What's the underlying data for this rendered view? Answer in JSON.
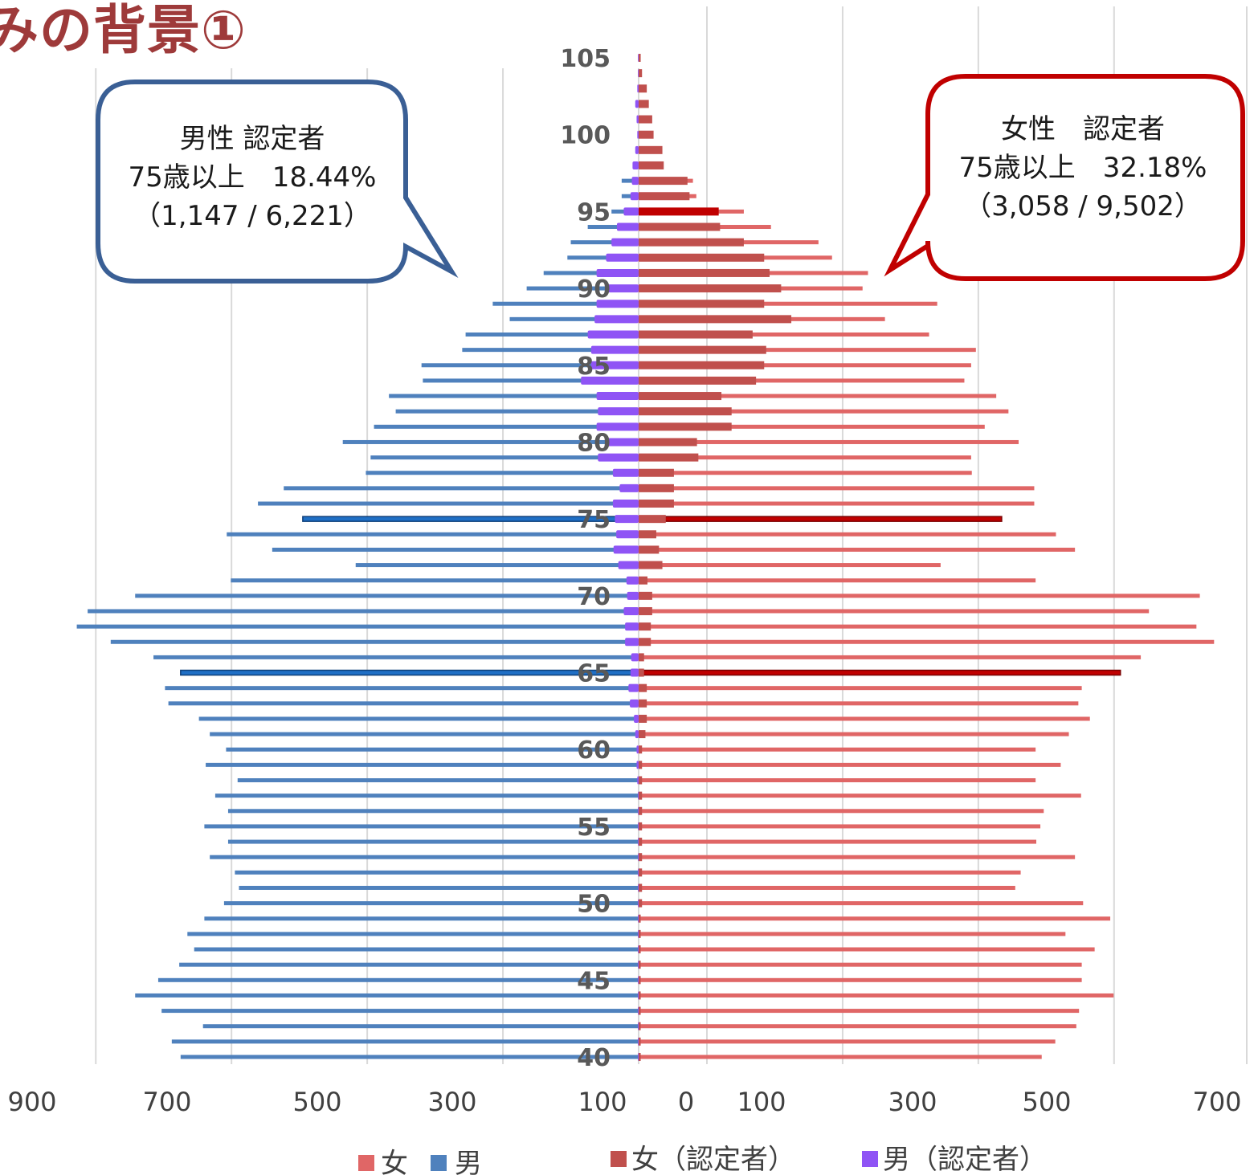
{
  "page": {
    "title": "みの背景①"
  },
  "colors": {
    "female": "#e06666",
    "male": "#4f81bd",
    "female_certified": "#c0504d",
    "male_certified": "#8f54f5",
    "grid": "#d9d9d9",
    "callout_male_border": "#3a5f95",
    "callout_female_border": "#c00000",
    "highlight_male": "#1f6fc5",
    "highlight_female": "#c00000"
  },
  "callouts": {
    "male": {
      "line1": "男性 認定者",
      "line2": "75歳以上　18.44%",
      "line3": "（1,147 /  6,221）"
    },
    "female": {
      "line1": "女性　認定者",
      "line2": "75歳以上　32.18%",
      "line3": "（3,058  /  9,502）"
    }
  },
  "legend": [
    {
      "label": "女",
      "color": "#e06666"
    },
    {
      "label": "男",
      "color": "#4f81bd"
    },
    {
      "label": "女（認定者）",
      "color": "#c0504d"
    },
    {
      "label": "男（認定者）",
      "color": "#8f54f5"
    }
  ],
  "chart_data": {
    "type": "bar",
    "orientation": "horizontal",
    "ages": [
      105,
      104,
      103,
      102,
      101,
      100,
      99,
      98,
      97,
      96,
      95,
      94,
      93,
      92,
      91,
      90,
      89,
      88,
      87,
      86,
      85,
      84,
      83,
      82,
      81,
      80,
      79,
      78,
      77,
      76,
      75,
      74,
      73,
      72,
      71,
      70,
      69,
      68,
      67,
      66,
      65,
      64,
      63,
      62,
      61,
      60,
      59,
      58,
      57,
      56,
      55,
      54,
      53,
      52,
      51,
      50,
      49,
      48,
      47,
      46,
      45,
      44,
      43,
      42,
      41,
      40
    ],
    "age_tick_labels": [
      "105",
      "100",
      "95",
      "90",
      "85",
      "80",
      "75",
      "70",
      "65",
      "60",
      "55",
      "50",
      "45",
      "40"
    ],
    "age_tick_values": [
      105,
      100,
      95,
      90,
      85,
      80,
      75,
      70,
      65,
      60,
      55,
      50,
      45,
      40
    ],
    "x_tick_labels_male": [
      "900",
      "700",
      "500",
      "300",
      "100"
    ],
    "x_tick_labels_female": [
      "0",
      "100",
      "300",
      "500",
      "700"
    ],
    "male_axis_range": [
      0,
      900
    ],
    "female_axis_range": [
      0,
      900
    ],
    "grid": true,
    "legend_position": "bottom",
    "highlight_ages": [
      95,
      75,
      65
    ],
    "series": [
      {
        "name": "男",
        "side": "left",
        "values": [
          0,
          0,
          0,
          0,
          0,
          0,
          0,
          0,
          25,
          25,
          40,
          75,
          100,
          105,
          140,
          165,
          215,
          190,
          255,
          260,
          320,
          318,
          368,
          358,
          390,
          436,
          395,
          402,
          523,
          561,
          495,
          607,
          540,
          417,
          601,
          742,
          812,
          828,
          778,
          715,
          675,
          698,
          693,
          648,
          632,
          608,
          638,
          591,
          624,
          605,
          640,
          605,
          632,
          595,
          589,
          611,
          640,
          665,
          655,
          677,
          708,
          742,
          703,
          642,
          688,
          675
        ]
      },
      {
        "name": "女",
        "side": "right",
        "values": [
          0,
          0,
          0,
          0,
          0,
          0,
          0,
          0,
          80,
          85,
          155,
          195,
          265,
          285,
          338,
          330,
          440,
          363,
          428,
          497,
          490,
          480,
          527,
          545,
          510,
          560,
          490,
          491,
          583,
          583,
          535,
          615,
          643,
          445,
          585,
          827,
          752,
          822,
          848,
          740,
          710,
          653,
          648,
          665,
          634,
          585,
          622,
          585,
          652,
          597,
          592,
          586,
          643,
          563,
          555,
          655,
          695,
          629,
          672,
          653,
          653,
          700,
          649,
          645,
          614,
          594
        ]
      },
      {
        "name": "男（認定者）",
        "side": "left",
        "values": [
          1,
          1,
          2,
          5,
          3,
          2,
          5,
          9,
          10,
          12,
          22,
          32,
          40,
          48,
          62,
          48,
          62,
          65,
          75,
          70,
          70,
          85,
          62,
          60,
          62,
          47,
          60,
          38,
          28,
          38,
          35,
          33,
          37,
          30,
          18,
          17,
          22,
          20,
          20,
          11,
          12,
          15,
          13,
          7,
          5,
          3,
          3,
          2,
          1,
          1,
          1,
          1,
          1,
          1,
          1,
          1,
          1,
          1,
          1,
          1,
          1,
          1,
          1,
          1,
          1,
          1
        ]
      },
      {
        "name": "女（認定者）",
        "side": "right",
        "values": [
          3,
          5,
          12,
          15,
          20,
          22,
          35,
          37,
          72,
          75,
          118,
          120,
          155,
          185,
          193,
          210,
          185,
          225,
          168,
          188,
          185,
          173,
          122,
          137,
          137,
          86,
          88,
          52,
          52,
          52,
          40,
          26,
          30,
          35,
          13,
          20,
          20,
          18,
          18,
          8,
          8,
          12,
          12,
          12,
          10,
          5,
          5,
          5,
          5,
          5,
          5,
          5,
          5,
          5,
          5,
          5,
          3,
          3,
          3,
          3,
          3,
          3,
          3,
          3,
          3,
          3
        ]
      }
    ]
  }
}
